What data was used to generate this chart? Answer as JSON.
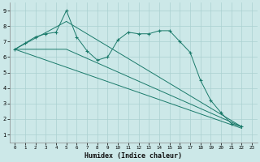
{
  "bg_color": "#cce8e8",
  "grid_color": "#aad0d0",
  "line_color": "#1a7a6a",
  "xlabel": "Humidex (Indice chaleur)",
  "xlim": [
    -0.5,
    23.5
  ],
  "ylim": [
    0.5,
    9.5
  ],
  "xticks": [
    0,
    1,
    2,
    3,
    4,
    5,
    6,
    7,
    8,
    9,
    10,
    11,
    12,
    13,
    14,
    15,
    16,
    17,
    18,
    19,
    20,
    21,
    22,
    23
  ],
  "yticks": [
    1,
    2,
    3,
    4,
    5,
    6,
    7,
    8,
    9
  ],
  "series": [
    {
      "x": [
        0,
        1,
        2,
        3,
        4,
        5,
        6,
        7,
        8,
        9,
        10,
        11,
        12,
        13,
        14,
        15,
        16,
        17,
        18,
        19,
        20,
        21,
        22
      ],
      "y": [
        6.5,
        6.9,
        7.3,
        7.5,
        7.6,
        9.0,
        7.3,
        6.4,
        5.8,
        6.0,
        7.1,
        7.6,
        7.5,
        7.5,
        7.7,
        7.7,
        7.0,
        6.3,
        4.5,
        3.2,
        2.4,
        1.7,
        1.5
      ],
      "has_markers": true
    },
    {
      "x": [
        0,
        5,
        22
      ],
      "y": [
        6.5,
        8.3,
        1.5
      ],
      "has_markers": false
    },
    {
      "x": [
        0,
        5,
        22
      ],
      "y": [
        6.5,
        6.5,
        1.5
      ],
      "has_markers": false
    },
    {
      "x": [
        0,
        22
      ],
      "y": [
        6.5,
        1.4
      ],
      "has_markers": false
    }
  ]
}
